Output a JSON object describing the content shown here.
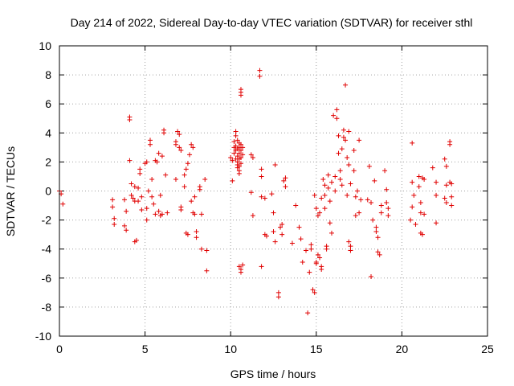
{
  "chart_data": {
    "type": "scatter",
    "title": "Day 214 of 2022, Sidereal Day-to-day VTEC variation (SDTVAR) for receiver sthl",
    "xlabel": "GPS time / hours",
    "ylabel": "SDTVAR / TECUs",
    "xlim": [
      0,
      25
    ],
    "ylim": [
      -10,
      10
    ],
    "xticks": [
      "0",
      "5",
      "10",
      "15",
      "20",
      "25"
    ],
    "yticks": [
      "-10",
      "-8",
      "-6",
      "-4",
      "-2",
      "0",
      "2",
      "4",
      "6",
      "8",
      "10"
    ],
    "grid": true,
    "marker": "plus",
    "color": "#e00000",
    "series": [
      {
        "name": "sthl",
        "points": [
          [
            0.0,
            0.0
          ],
          [
            0.1,
            -0.2
          ],
          [
            0.2,
            -0.9
          ],
          [
            3.1,
            -0.6
          ],
          [
            3.1,
            -1.1
          ],
          [
            3.2,
            -1.9
          ],
          [
            3.2,
            -2.3
          ],
          [
            3.8,
            -0.6
          ],
          [
            3.8,
            -2.4
          ],
          [
            3.9,
            -2.7
          ],
          [
            3.9,
            -1.4
          ],
          [
            4.1,
            5.1
          ],
          [
            4.1,
            4.9
          ],
          [
            4.1,
            2.1
          ],
          [
            4.2,
            0.5
          ],
          [
            4.2,
            -0.3
          ],
          [
            4.3,
            -0.5
          ],
          [
            4.4,
            0.3
          ],
          [
            4.4,
            -0.7
          ],
          [
            4.4,
            -3.5
          ],
          [
            4.5,
            -3.4
          ],
          [
            4.6,
            0.2
          ],
          [
            4.6,
            -0.7
          ],
          [
            4.7,
            1.5
          ],
          [
            4.7,
            1.2
          ],
          [
            4.8,
            -1.3
          ],
          [
            4.8,
            -0.4
          ],
          [
            5.0,
            1.9
          ],
          [
            5.1,
            2.0
          ],
          [
            5.1,
            -1.2
          ],
          [
            5.1,
            -2.0
          ],
          [
            5.2,
            0.0
          ],
          [
            5.3,
            3.5
          ],
          [
            5.3,
            3.2
          ],
          [
            5.4,
            0.8
          ],
          [
            5.4,
            -0.4
          ],
          [
            5.5,
            -0.9
          ],
          [
            5.6,
            2.1
          ],
          [
            5.6,
            -1.6
          ],
          [
            5.7,
            2.0
          ],
          [
            5.8,
            2.6
          ],
          [
            5.8,
            -1.4
          ],
          [
            5.9,
            -1.7
          ],
          [
            5.9,
            -0.3
          ],
          [
            6.0,
            2.4
          ],
          [
            6.0,
            -1.6
          ],
          [
            6.1,
            4.2
          ],
          [
            6.1,
            4.0
          ],
          [
            6.2,
            1.1
          ],
          [
            6.3,
            -1.5
          ],
          [
            6.8,
            3.4
          ],
          [
            6.8,
            3.2
          ],
          [
            6.8,
            0.8
          ],
          [
            6.9,
            4.1
          ],
          [
            7.0,
            3.9
          ],
          [
            7.0,
            3.0
          ],
          [
            7.1,
            2.8
          ],
          [
            7.1,
            -1.1
          ],
          [
            7.1,
            -1.3
          ],
          [
            7.3,
            1.1
          ],
          [
            7.3,
            0.3
          ],
          [
            7.4,
            1.5
          ],
          [
            7.4,
            -2.9
          ],
          [
            7.5,
            1.9
          ],
          [
            7.5,
            -3.0
          ],
          [
            7.6,
            2.5
          ],
          [
            7.7,
            3.2
          ],
          [
            7.7,
            -0.7
          ],
          [
            7.8,
            3.0
          ],
          [
            7.8,
            -1.5
          ],
          [
            7.9,
            -0.4
          ],
          [
            7.9,
            -1.6
          ],
          [
            8.0,
            -2.8
          ],
          [
            8.0,
            -3.2
          ],
          [
            8.2,
            0.1
          ],
          [
            8.2,
            0.3
          ],
          [
            8.3,
            -4.0
          ],
          [
            8.3,
            -1.6
          ],
          [
            8.5,
            0.8
          ],
          [
            8.6,
            -4.1
          ],
          [
            8.6,
            -5.5
          ],
          [
            10.0,
            2.3
          ],
          [
            10.1,
            2.1
          ],
          [
            10.1,
            0.7
          ],
          [
            10.2,
            3.0
          ],
          [
            10.2,
            3.4
          ],
          [
            10.2,
            2.6
          ],
          [
            10.3,
            4.1
          ],
          [
            10.3,
            3.8
          ],
          [
            10.3,
            3.1
          ],
          [
            10.3,
            2.8
          ],
          [
            10.3,
            2.2
          ],
          [
            10.4,
            3.5
          ],
          [
            10.4,
            2.9
          ],
          [
            10.4,
            2.4
          ],
          [
            10.4,
            2.0
          ],
          [
            10.4,
            1.8
          ],
          [
            10.4,
            1.6
          ],
          [
            10.5,
            3.3
          ],
          [
            10.5,
            3.0
          ],
          [
            10.5,
            2.6
          ],
          [
            10.5,
            2.2
          ],
          [
            10.5,
            1.7
          ],
          [
            10.5,
            1.4
          ],
          [
            10.5,
            1.2
          ],
          [
            10.6,
            3.2
          ],
          [
            10.6,
            2.8
          ],
          [
            10.6,
            2.3
          ],
          [
            10.6,
            1.9
          ],
          [
            10.6,
            7.0
          ],
          [
            10.6,
            6.8
          ],
          [
            10.6,
            6.6
          ],
          [
            10.7,
            3.0
          ],
          [
            10.7,
            2.5
          ],
          [
            10.5,
            -5.2
          ],
          [
            10.6,
            -5.4
          ],
          [
            10.6,
            -5.6
          ],
          [
            10.7,
            -5.1
          ],
          [
            11.2,
            2.5
          ],
          [
            11.2,
            -0.1
          ],
          [
            11.3,
            2.3
          ],
          [
            11.3,
            -1.7
          ],
          [
            11.7,
            8.3
          ],
          [
            11.7,
            7.9
          ],
          [
            11.8,
            1.5
          ],
          [
            11.8,
            1.0
          ],
          [
            11.8,
            -0.4
          ],
          [
            11.8,
            -5.2
          ],
          [
            12.0,
            -0.5
          ],
          [
            12.0,
            -3.0
          ],
          [
            12.1,
            -3.1
          ],
          [
            12.4,
            -0.2
          ],
          [
            12.5,
            -1.5
          ],
          [
            12.5,
            -2.8
          ],
          [
            12.6,
            -3.5
          ],
          [
            12.6,
            1.8
          ],
          [
            12.8,
            -7.0
          ],
          [
            12.8,
            -7.3
          ],
          [
            12.9,
            -2.5
          ],
          [
            13.0,
            -2.3
          ],
          [
            13.0,
            -3.0
          ],
          [
            13.1,
            0.7
          ],
          [
            13.2,
            0.3
          ],
          [
            13.2,
            0.9
          ],
          [
            13.6,
            -3.6
          ],
          [
            13.8,
            -1.0
          ],
          [
            14.0,
            -2.5
          ],
          [
            14.1,
            -3.3
          ],
          [
            14.2,
            -4.9
          ],
          [
            14.4,
            -4.1
          ],
          [
            14.5,
            -8.4
          ],
          [
            14.6,
            -5.6
          ],
          [
            14.7,
            -3.7
          ],
          [
            14.7,
            -4.0
          ],
          [
            14.8,
            -6.8
          ],
          [
            14.9,
            -7.0
          ],
          [
            14.9,
            -0.3
          ],
          [
            15.0,
            -4.9
          ],
          [
            15.0,
            -5.0
          ],
          [
            15.0,
            -1.2
          ],
          [
            15.1,
            -1.7
          ],
          [
            15.1,
            -4.4
          ],
          [
            15.2,
            -4.6
          ],
          [
            15.2,
            -1.5
          ],
          [
            15.3,
            -0.5
          ],
          [
            15.3,
            -5.2
          ],
          [
            15.3,
            -5.4
          ],
          [
            15.4,
            0.8
          ],
          [
            15.5,
            0.4
          ],
          [
            15.5,
            -0.3
          ],
          [
            15.5,
            -1.2
          ],
          [
            15.6,
            -3.8
          ],
          [
            15.6,
            -4.0
          ],
          [
            15.7,
            1.1
          ],
          [
            15.7,
            0.2
          ],
          [
            15.8,
            -0.7
          ],
          [
            15.8,
            -2.2
          ],
          [
            15.9,
            0.6
          ],
          [
            15.9,
            -2.9
          ],
          [
            16.0,
            5.2
          ],
          [
            16.1,
            1.0
          ],
          [
            16.1,
            0.0
          ],
          [
            16.2,
            5.6
          ],
          [
            16.2,
            5.0
          ],
          [
            16.3,
            3.8
          ],
          [
            16.3,
            2.6
          ],
          [
            16.4,
            1.4
          ],
          [
            16.4,
            0.8
          ],
          [
            16.5,
            2.9
          ],
          [
            16.5,
            0.4
          ],
          [
            16.6,
            4.2
          ],
          [
            16.6,
            3.7
          ],
          [
            16.7,
            7.3
          ],
          [
            16.7,
            3.5
          ],
          [
            16.8,
            2.3
          ],
          [
            16.8,
            -0.3
          ],
          [
            16.9,
            4.1
          ],
          [
            16.9,
            1.8
          ],
          [
            16.9,
            -3.5
          ],
          [
            17.0,
            0.5
          ],
          [
            17.0,
            -3.8
          ],
          [
            17.0,
            -4.1
          ],
          [
            17.2,
            2.8
          ],
          [
            17.2,
            1.4
          ],
          [
            17.3,
            -0.4
          ],
          [
            17.3,
            -1.7
          ],
          [
            17.4,
            0.0
          ],
          [
            17.5,
            3.5
          ],
          [
            17.5,
            -1.5
          ],
          [
            17.6,
            -0.6
          ],
          [
            18.0,
            -0.6
          ],
          [
            18.1,
            1.7
          ],
          [
            18.2,
            -0.8
          ],
          [
            18.2,
            -5.9
          ],
          [
            18.3,
            -2.0
          ],
          [
            18.4,
            0.7
          ],
          [
            18.5,
            -2.5
          ],
          [
            18.5,
            -2.8
          ],
          [
            18.6,
            -3.2
          ],
          [
            18.6,
            -4.2
          ],
          [
            18.7,
            -4.4
          ],
          [
            18.8,
            -1.0
          ],
          [
            18.8,
            -1.5
          ],
          [
            19.0,
            1.4
          ],
          [
            19.1,
            0.1
          ],
          [
            19.1,
            -0.8
          ],
          [
            19.2,
            -1.2
          ],
          [
            19.2,
            -1.7
          ],
          [
            20.5,
            -2.0
          ],
          [
            20.6,
            3.3
          ],
          [
            20.6,
            0.6
          ],
          [
            20.6,
            -1.1
          ],
          [
            20.7,
            -0.3
          ],
          [
            20.8,
            -2.3
          ],
          [
            21.0,
            1.0
          ],
          [
            21.0,
            0.3
          ],
          [
            21.1,
            -0.8
          ],
          [
            21.1,
            -1.5
          ],
          [
            21.1,
            -2.9
          ],
          [
            21.2,
            0.9
          ],
          [
            21.2,
            -3.0
          ],
          [
            21.3,
            -1.6
          ],
          [
            21.3,
            0.8
          ],
          [
            21.8,
            1.6
          ],
          [
            22.0,
            0.6
          ],
          [
            22.0,
            -0.3
          ],
          [
            22.0,
            -2.2
          ],
          [
            22.5,
            2.2
          ],
          [
            22.5,
            -0.5
          ],
          [
            22.6,
            1.7
          ],
          [
            22.6,
            0.4
          ],
          [
            22.6,
            -0.8
          ],
          [
            22.8,
            3.4
          ],
          [
            22.8,
            3.2
          ],
          [
            22.8,
            0.6
          ],
          [
            22.9,
            0.5
          ],
          [
            22.9,
            -1.0
          ],
          [
            22.9,
            -0.4
          ]
        ]
      }
    ]
  }
}
